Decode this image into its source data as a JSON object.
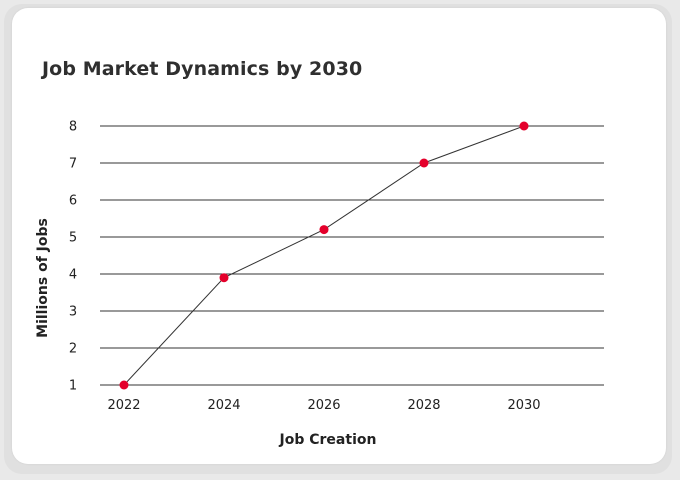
{
  "chart_data": {
    "type": "line",
    "title": "Job Market Dynamics by 2030",
    "xlabel": "Job Creation",
    "ylabel": "Millions of Jobs",
    "x": [
      "2022",
      "2024",
      "2026",
      "2028",
      "2030"
    ],
    "y_ticks": [
      "1",
      "2",
      "3",
      "4",
      "5",
      "6",
      "7",
      "8"
    ],
    "series": [
      {
        "values": [
          1,
          3.9,
          5.2,
          7,
          8
        ]
      }
    ],
    "ylim": [
      1,
      8
    ],
    "grid": "horizontal",
    "colors": {
      "marker": "#e4002b",
      "line": "#333333",
      "grid": "#333333"
    }
  }
}
